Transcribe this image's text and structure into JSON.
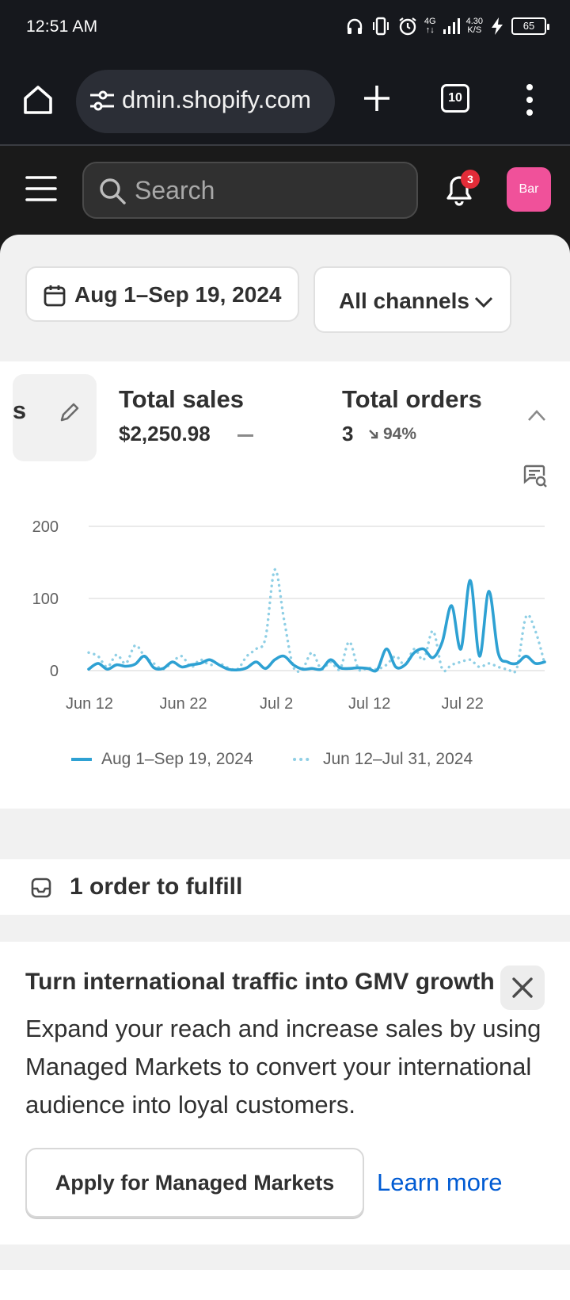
{
  "status_bar": {
    "time": "12:51 AM",
    "network": "4G",
    "speed_value": "4.30",
    "speed_unit": "K/S",
    "battery": "65"
  },
  "browser": {
    "url": "dmin.shopify.com",
    "tab_count": "10"
  },
  "admin_bar": {
    "search_placeholder": "Search",
    "notification_count": "3",
    "avatar_label": "Bar"
  },
  "filters": {
    "date_range": "Aug 1–Sep 19, 2024",
    "channel": "All channels"
  },
  "metrics": {
    "partial_label": "ons",
    "total_sales": {
      "title": "Total sales",
      "value": "$2,250.98"
    },
    "total_orders": {
      "title": "Total orders",
      "value": "3",
      "change": "94%"
    }
  },
  "chart_data": {
    "type": "line",
    "ylim": [
      0,
      200
    ],
    "y_ticks": [
      "200",
      "100",
      "0"
    ],
    "x_tick_labels": [
      "Jun 12",
      "Jun 22",
      "Jul 2",
      "Jul 12",
      "Jul 22"
    ],
    "series": [
      {
        "name": "Aug 1–Sep 19, 2024",
        "style": "solid",
        "color": "#2ea1d3",
        "x": [
          0,
          1,
          2,
          3,
          4,
          5,
          6,
          7,
          8,
          9,
          10,
          11,
          12,
          13,
          14,
          15,
          16,
          17,
          18,
          19,
          20,
          21,
          22,
          23,
          24,
          25,
          26,
          27,
          28,
          29,
          30,
          31,
          32,
          33,
          34,
          35,
          36,
          37,
          38,
          39,
          40,
          41,
          42,
          43,
          44,
          45,
          46,
          47,
          48,
          49
        ],
        "values": [
          2,
          10,
          2,
          8,
          6,
          9,
          20,
          4,
          3,
          12,
          5,
          8,
          10,
          15,
          8,
          2,
          1,
          4,
          12,
          3,
          15,
          20,
          8,
          2,
          3,
          2,
          15,
          4,
          3,
          4,
          3,
          1,
          30,
          5,
          8,
          25,
          30,
          18,
          40,
          90,
          30,
          125,
          20,
          110,
          25,
          12,
          10,
          20,
          10,
          12
        ]
      },
      {
        "name": "Jun 12–Jul 31, 2024",
        "style": "dotted",
        "color": "#8fcfe5",
        "x": [
          0,
          1,
          2,
          3,
          4,
          5,
          6,
          7,
          8,
          9,
          10,
          11,
          12,
          13,
          14,
          15,
          16,
          17,
          18,
          19,
          20,
          21,
          22,
          23,
          24,
          25,
          26,
          27,
          28,
          29,
          30,
          31,
          32,
          33,
          34,
          35,
          36,
          37,
          38,
          39,
          40,
          41,
          42,
          43,
          44,
          45,
          46,
          47,
          48,
          49
        ],
        "values": [
          25,
          20,
          5,
          22,
          10,
          35,
          20,
          10,
          2,
          12,
          20,
          5,
          15,
          8,
          10,
          4,
          2,
          20,
          30,
          45,
          140,
          70,
          5,
          3,
          25,
          2,
          12,
          2,
          40,
          2,
          4,
          2,
          8,
          20,
          8,
          30,
          15,
          55,
          2,
          8,
          12,
          15,
          5,
          10,
          5,
          2,
          3,
          75,
          55,
          10
        ]
      }
    ]
  },
  "fulfill": {
    "label": "1 order to fulfill"
  },
  "promo": {
    "title": "Turn international traffic into GMV growth",
    "body": "Expand your reach and increase sales by using Managed Markets to convert your international audience into loyal customers.",
    "primary_button": "Apply for Managed Markets",
    "link": "Learn more"
  },
  "colors": {
    "accent_link": "#005bd3",
    "avatar": "#f0519a",
    "badge": "#e22c38",
    "series_current": "#2ea1d3",
    "series_previous": "#8fcfe5"
  }
}
